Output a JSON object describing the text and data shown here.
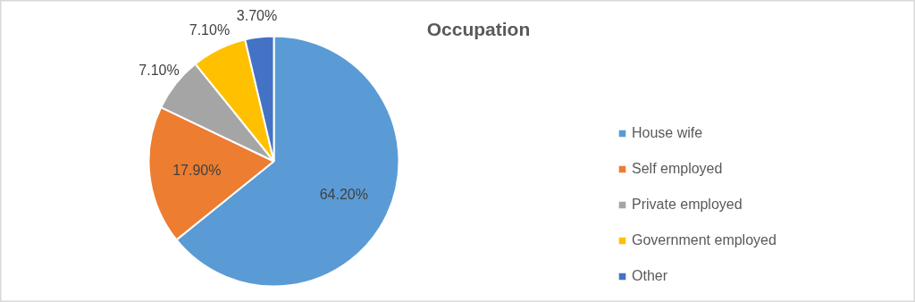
{
  "chart_data": {
    "type": "pie",
    "title": "Occupation",
    "categories": [
      "House wife",
      "Self employed",
      "Private employed",
      "Government employed",
      "Other"
    ],
    "values": [
      64.2,
      17.9,
      7.1,
      7.1,
      3.7
    ],
    "colors": [
      "#5b9bd5",
      "#ed7d31",
      "#a5a5a5",
      "#ffc000",
      "#4472c4"
    ],
    "value_labels": [
      "64.20%",
      "17.90%",
      "7.10%",
      "7.10%",
      "3.70%"
    ],
    "legend": "right"
  }
}
